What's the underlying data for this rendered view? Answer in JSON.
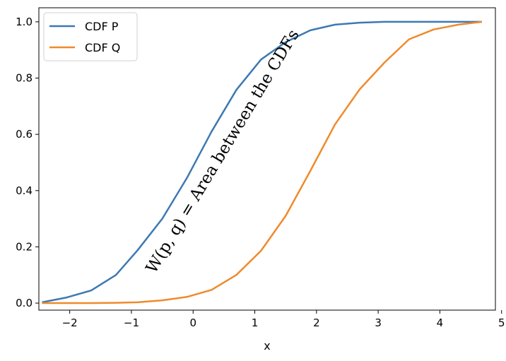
{
  "chart_data": {
    "type": "line",
    "title": "",
    "xlabel": "x",
    "ylabel": "",
    "xlim": [
      -2.5,
      4.9
    ],
    "ylim": [
      -0.025,
      1.05
    ],
    "grid": false,
    "legend_position": "top-left",
    "x_ticks": [
      -2,
      -1,
      0,
      1,
      2,
      3,
      4,
      5
    ],
    "y_ticks": [
      0.0,
      0.2,
      0.4,
      0.6,
      0.8,
      1.0
    ],
    "x_tick_labels": [
      "−2",
      "−1",
      "0",
      "1",
      "2",
      "3",
      "4",
      "5"
    ],
    "y_tick_labels": [
      "0.0",
      "0.2",
      "0.4",
      "0.6",
      "0.8",
      "1.0"
    ],
    "series": [
      {
        "name": "CDF P",
        "color": "#3d79b3",
        "x": [
          -2.45,
          -2.05,
          -1.65,
          -1.25,
          -0.9,
          -0.5,
          -0.1,
          0.3,
          0.7,
          1.1,
          1.5,
          1.9,
          2.3,
          2.7,
          3.1,
          3.5,
          3.9,
          4.3,
          4.68
        ],
        "y": [
          0.003,
          0.02,
          0.045,
          0.1,
          0.188,
          0.3,
          0.445,
          0.61,
          0.758,
          0.866,
          0.928,
          0.97,
          0.99,
          0.997,
          1.0,
          1.0,
          1.0,
          1.0,
          1.0
        ]
      },
      {
        "name": "CDF Q",
        "color": "#ef8a2c",
        "x": [
          -2.45,
          -2.05,
          -1.65,
          -1.25,
          -0.9,
          -0.5,
          -0.1,
          0.3,
          0.7,
          1.1,
          1.5,
          1.9,
          2.3,
          2.7,
          3.1,
          3.5,
          3.9,
          4.3,
          4.68
        ],
        "y": [
          0.0,
          0.0,
          0.0,
          0.001,
          0.003,
          0.01,
          0.022,
          0.047,
          0.1,
          0.186,
          0.31,
          0.47,
          0.635,
          0.76,
          0.855,
          0.938,
          0.973,
          0.99,
          1.0
        ]
      }
    ],
    "annotation": {
      "text": "W(p, q) = Area between the CDFs",
      "x": 0.55,
      "y": 0.53,
      "rotation_deg": -59
    }
  }
}
